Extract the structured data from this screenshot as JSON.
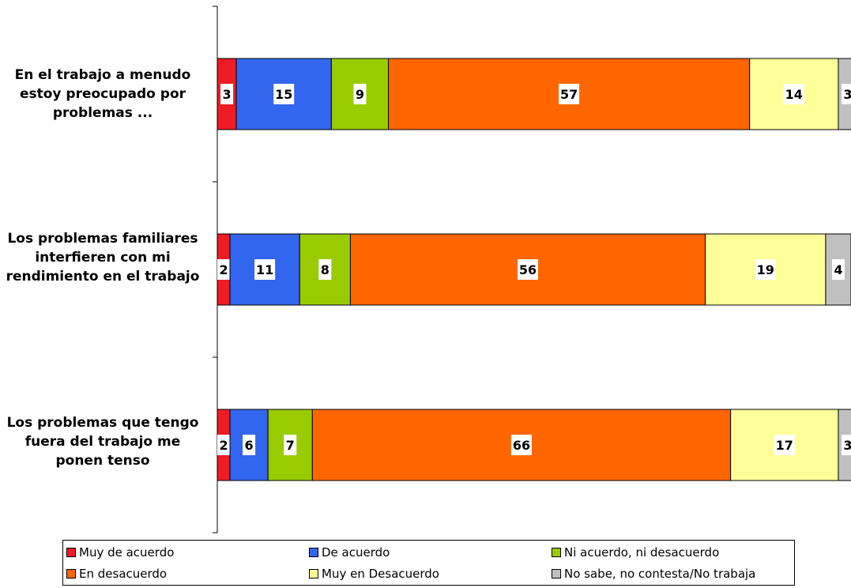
{
  "chart_data": {
    "type": "bar",
    "orientation": "horizontal",
    "stacked": true,
    "normalized": true,
    "categories": [
      "En el trabajo a menudo estoy preocupado por problemas ...",
      "Los problemas familiares interfieren con mi rendimiento en el trabajo",
      "Los problemas que tengo fuera del trabajo me ponen tenso"
    ],
    "series": [
      {
        "name": "Muy de acuerdo",
        "color": "#ee1d23",
        "values": [
          3,
          2,
          2
        ]
      },
      {
        "name": "De acuerdo",
        "color": "#3366ee",
        "values": [
          15,
          11,
          6
        ]
      },
      {
        "name": "Ni acuerdo, ni desacuerdo",
        "color": "#99cc00",
        "values": [
          9,
          8,
          7
        ]
      },
      {
        "name": "En desacuerdo",
        "color": "#ff6600",
        "values": [
          57,
          56,
          66
        ]
      },
      {
        "name": "Muy en Desacuerdo",
        "color": "#ffff99",
        "values": [
          14,
          19,
          17
        ]
      },
      {
        "name": "No sabe, no contesta/No trabaja",
        "color": "#c0c0c0",
        "values": [
          3,
          4,
          3
        ]
      }
    ],
    "legend_position": "bottom",
    "grid": false,
    "data_labels": true
  }
}
